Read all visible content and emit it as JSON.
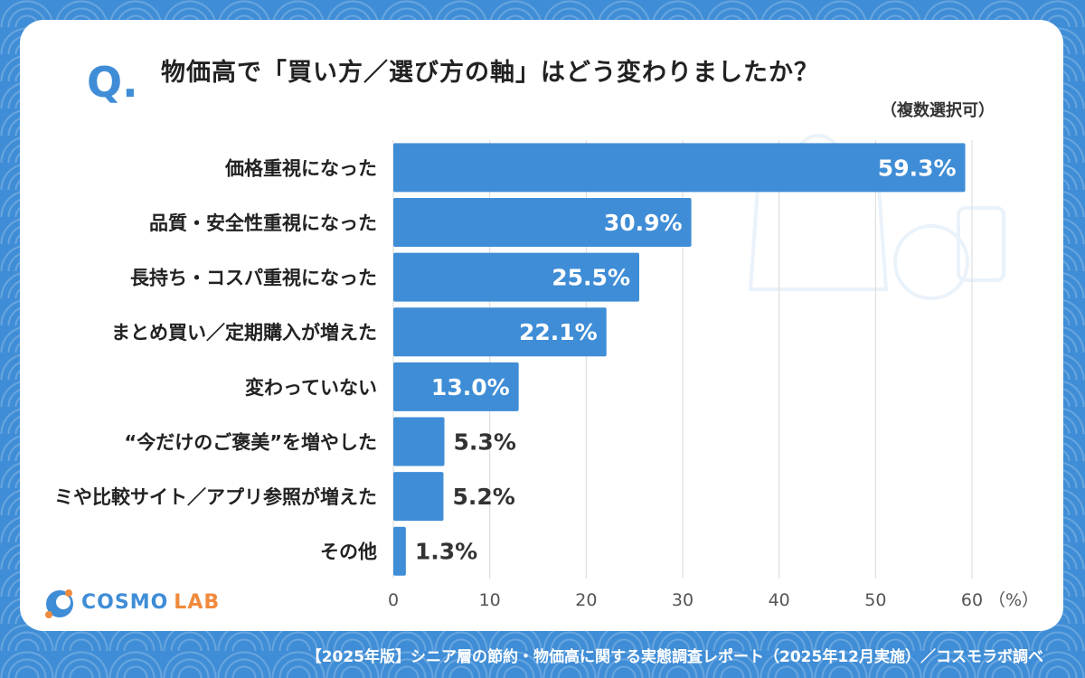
{
  "question": {
    "mark": "Q.",
    "text": "物価高で「買い方／選び方の軸」はどう変わりましたか？",
    "note": "（複数選択可）"
  },
  "chart_data": {
    "type": "bar",
    "orientation": "horizontal",
    "categories": [
      "価格重視になった",
      "品質・安全性重視になった",
      "長持ち・コスパ重視になった",
      "まとめ買い／定期購入が増えた",
      "変わっていない",
      "“今だけのご褒美”を増やした",
      "ミや比較サイト／アプリ参照が増えた",
      "その他"
    ],
    "values": [
      59.3,
      30.9,
      25.5,
      22.1,
      13.0,
      5.3,
      5.2,
      1.3
    ],
    "value_labels": [
      "59.3%",
      "30.9%",
      "25.5%",
      "22.1%",
      "13.0%",
      "5.3%",
      "5.2%",
      "1.3%"
    ],
    "xlim": [
      0,
      60
    ],
    "xticks": [
      "0",
      "10",
      "20",
      "30",
      "40",
      "50",
      "60"
    ],
    "xunit": "（%）",
    "grid": true,
    "bar_color": "#3f8dd6"
  },
  "brand": {
    "name_part1": "COSMO",
    "name_part2": "LAB",
    "primary_color": "#3f8dd6",
    "accent_color": "#f08a3c"
  },
  "footer": {
    "text": "【2025年版】シニア層の節約・物価高に関する実態調査レポート（2025年12月実施）／コスモラボ調べ"
  }
}
